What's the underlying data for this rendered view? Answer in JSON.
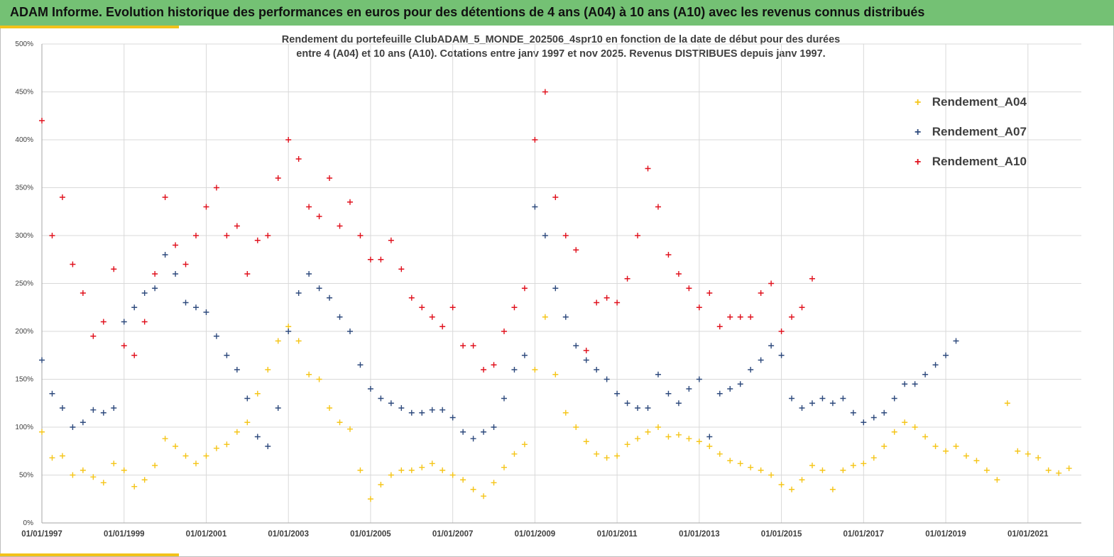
{
  "banner": {
    "title": "ADAM Informe. Evolution historique des performances en euros pour des détentions de 4 ans (A04) à 10 ans (A10) avec les revenus connus distribués"
  },
  "colors": {
    "banner": "#74c174",
    "accent": "#f2c21a",
    "a04": "#f5c518",
    "a07": "#2e4a7d",
    "a10": "#e0101c"
  },
  "chart_data": {
    "type": "scatter",
    "title_line1": "Rendement du portefeuille ClubADAM_5_MONDE_202506_4spr10  en fonction de la date de début pour des durées",
    "title_line2": "entre 4 (A04) et 10 ans (A10). Cotations entre janv 1997 et nov 2025. Revenus DISTRIBUES depuis janv 1997.",
    "ylim": [
      0,
      500
    ],
    "xlim": [
      1997.0,
      2022.3
    ],
    "y_ticks": [
      "0%",
      "50%",
      "100%",
      "150%",
      "200%",
      "250%",
      "300%",
      "350%",
      "400%",
      "450%",
      "500%"
    ],
    "y_tick_values": [
      0,
      50,
      100,
      150,
      200,
      250,
      300,
      350,
      400,
      450,
      500
    ],
    "x_ticks": [
      "01/01/1997",
      "01/01/1999",
      "01/01/2001",
      "01/01/2003",
      "01/01/2005",
      "01/01/2007",
      "01/01/2009",
      "01/01/2011",
      "01/01/2013",
      "01/01/2015",
      "01/01/2017",
      "01/01/2019",
      "01/01/2021"
    ],
    "x_tick_values": [
      1997,
      1999,
      2001,
      2003,
      2005,
      2007,
      2009,
      2011,
      2013,
      2015,
      2017,
      2019,
      2021
    ],
    "series": [
      {
        "name": "Rendement_A04",
        "x": [
          1997.0,
          1997.25,
          1997.5,
          1997.75,
          1998.0,
          1998.25,
          1998.5,
          1998.75,
          1999.0,
          1999.25,
          1999.5,
          1999.75,
          2000.0,
          2000.25,
          2000.5,
          2000.75,
          2001.0,
          2001.25,
          2001.5,
          2001.75,
          2002.0,
          2002.25,
          2002.5,
          2002.75,
          2003.0,
          2003.25,
          2003.5,
          2003.75,
          2004.0,
          2004.25,
          2004.5,
          2004.75,
          2005.0,
          2005.25,
          2005.5,
          2005.75,
          2006.0,
          2006.25,
          2006.5,
          2006.75,
          2007.0,
          2007.25,
          2007.5,
          2007.75,
          2008.0,
          2008.25,
          2008.5,
          2008.75,
          2009.0,
          2009.25,
          2009.5,
          2009.75,
          2010.0,
          2010.25,
          2010.5,
          2010.75,
          2011.0,
          2011.25,
          2011.5,
          2011.75,
          2012.0,
          2012.25,
          2012.5,
          2012.75,
          2013.0,
          2013.25,
          2013.5,
          2013.75,
          2014.0,
          2014.25,
          2014.5,
          2014.75,
          2015.0,
          2015.25,
          2015.5,
          2015.75,
          2016.0,
          2016.25,
          2016.5,
          2016.75,
          2017.0,
          2017.25,
          2017.5,
          2017.75,
          2018.0,
          2018.25,
          2018.5,
          2018.75,
          2019.0,
          2019.25,
          2019.5,
          2019.75,
          2020.0,
          2020.25,
          2020.5,
          2020.75,
          2021.0,
          2021.25,
          2021.5,
          2021.75,
          2022.0
        ],
        "values": [
          95,
          68,
          70,
          50,
          55,
          48,
          42,
          62,
          55,
          38,
          45,
          60,
          88,
          80,
          70,
          62,
          70,
          78,
          82,
          95,
          105,
          135,
          160,
          190,
          205,
          190,
          155,
          150,
          120,
          105,
          98,
          55,
          25,
          40,
          50,
          55,
          55,
          58,
          62,
          55,
          50,
          45,
          35,
          28,
          42,
          58,
          72,
          82,
          160,
          215,
          155,
          115,
          100,
          85,
          72,
          68,
          70,
          82,
          88,
          95,
          100,
          90,
          92,
          88,
          85,
          80,
          72,
          65,
          62,
          58,
          55,
          50,
          40,
          35,
          45,
          60,
          55,
          35,
          55,
          60,
          62,
          68,
          80,
          95,
          105,
          100,
          90,
          80,
          75,
          80,
          70,
          65,
          55,
          45,
          125,
          75,
          72,
          68,
          55,
          52,
          57
        ]
      },
      {
        "name": "Rendement_A07",
        "x": [
          1997.0,
          1997.25,
          1997.5,
          1997.75,
          1998.0,
          1998.25,
          1998.5,
          1998.75,
          1999.0,
          1999.25,
          1999.5,
          1999.75,
          2000.0,
          2000.25,
          2000.5,
          2000.75,
          2001.0,
          2001.25,
          2001.5,
          2001.75,
          2002.0,
          2002.25,
          2002.5,
          2002.75,
          2003.0,
          2003.25,
          2003.5,
          2003.75,
          2004.0,
          2004.25,
          2004.5,
          2004.75,
          2005.0,
          2005.25,
          2005.5,
          2005.75,
          2006.0,
          2006.25,
          2006.5,
          2006.75,
          2007.0,
          2007.25,
          2007.5,
          2007.75,
          2008.0,
          2008.25,
          2008.5,
          2008.75,
          2009.0,
          2009.25,
          2009.5,
          2009.75,
          2010.0,
          2010.25,
          2010.5,
          2010.75,
          2011.0,
          2011.25,
          2011.5,
          2011.75,
          2012.0,
          2012.25,
          2012.5,
          2012.75,
          2013.0,
          2013.25,
          2013.5,
          2013.75,
          2014.0,
          2014.25,
          2014.5,
          2014.75,
          2015.0,
          2015.25,
          2015.5,
          2015.75,
          2016.0,
          2016.25,
          2016.5,
          2016.75,
          2017.0,
          2017.25,
          2017.5,
          2017.75,
          2018.0,
          2018.25,
          2018.5,
          2018.75,
          2019.0,
          2019.25
        ],
        "values": [
          170,
          135,
          120,
          100,
          105,
          118,
          115,
          120,
          210,
          225,
          240,
          245,
          280,
          260,
          230,
          225,
          220,
          195,
          175,
          160,
          130,
          90,
          80,
          120,
          200,
          240,
          260,
          245,
          235,
          215,
          200,
          165,
          140,
          130,
          125,
          120,
          115,
          115,
          118,
          118,
          110,
          95,
          88,
          95,
          100,
          130,
          160,
          175,
          330,
          300,
          245,
          215,
          185,
          170,
          160,
          150,
          135,
          125,
          120,
          120,
          155,
          135,
          125,
          140,
          150,
          90,
          135,
          140,
          145,
          160,
          170,
          185,
          175,
          130,
          120,
          125,
          130,
          125,
          130,
          115,
          105,
          110,
          115,
          130,
          145,
          145,
          155,
          165,
          175,
          190
        ]
      },
      {
        "name": "Rendement_A10",
        "x": [
          1997.0,
          1997.25,
          1997.5,
          1997.75,
          1998.0,
          1998.25,
          1998.5,
          1998.75,
          1999.0,
          1999.25,
          1999.5,
          1999.75,
          2000.0,
          2000.25,
          2000.5,
          2000.75,
          2001.0,
          2001.25,
          2001.5,
          2001.75,
          2002.0,
          2002.25,
          2002.5,
          2002.75,
          2003.0,
          2003.25,
          2003.5,
          2003.75,
          2004.0,
          2004.25,
          2004.5,
          2004.75,
          2005.0,
          2005.25,
          2005.5,
          2005.75,
          2006.0,
          2006.25,
          2006.5,
          2006.75,
          2007.0,
          2007.25,
          2007.5,
          2007.75,
          2008.0,
          2008.25,
          2008.5,
          2008.75,
          2009.0,
          2009.25,
          2009.5,
          2009.75,
          2010.0,
          2010.25,
          2010.5,
          2010.75,
          2011.0,
          2011.25,
          2011.5,
          2011.75,
          2012.0,
          2012.25,
          2012.5,
          2012.75,
          2013.0,
          2013.25,
          2013.5,
          2013.75,
          2014.0,
          2014.25,
          2014.5,
          2014.75,
          2015.0,
          2015.25,
          2015.5,
          2015.75
        ],
        "values": [
          420,
          300,
          340,
          270,
          240,
          195,
          210,
          265,
          185,
          175,
          210,
          260,
          340,
          290,
          270,
          300,
          330,
          350,
          300,
          310,
          260,
          295,
          300,
          360,
          400,
          380,
          330,
          320,
          360,
          310,
          335,
          300,
          275,
          275,
          295,
          265,
          235,
          225,
          215,
          205,
          225,
          185,
          185,
          160,
          165,
          200,
          225,
          245,
          400,
          450,
          340,
          300,
          285,
          180,
          230,
          235,
          230,
          255,
          300,
          370,
          330,
          280,
          260,
          245,
          225,
          240,
          205,
          215,
          215,
          215,
          240,
          250,
          200,
          215,
          225,
          255
        ]
      }
    ],
    "legend": [
      "Rendement_A04",
      "Rendement_A07",
      "Rendement_A10"
    ],
    "legend_position": "top-right",
    "grid": true
  }
}
